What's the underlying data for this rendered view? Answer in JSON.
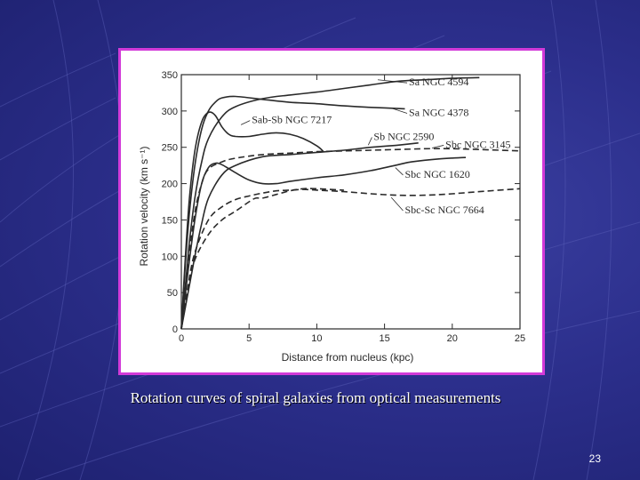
{
  "slide": {
    "caption": "Rotation curves of spiral galaxies from optical measurements",
    "page_number": "23"
  },
  "colors": {
    "background": "#2c2f8c",
    "frame_border": "#d23ad8",
    "ink": "#2a2a2a"
  },
  "chart_data": {
    "type": "line",
    "title": "",
    "xlabel": "Distance from nucleus (kpc)",
    "ylabel": "Rotation velocity (km s⁻¹)",
    "xlim": [
      0,
      25
    ],
    "ylim": [
      0,
      350
    ],
    "xticks": [
      0,
      5,
      10,
      15,
      20,
      25
    ],
    "yticks": [
      0,
      50,
      100,
      150,
      200,
      250,
      300,
      350
    ],
    "xtick_labels": [
      "0",
      "5",
      "10",
      "15",
      "20",
      "25"
    ],
    "ytick_labels": [
      "0",
      "50",
      "100",
      "150",
      "200",
      "250",
      "300",
      "350"
    ],
    "grid": false,
    "series": [
      {
        "name": "Sa NGC 4594",
        "dashed": false,
        "x": [
          0,
          0.3,
          0.6,
          1,
          1.5,
          2,
          2.5,
          3,
          4,
          6,
          8,
          10,
          12,
          14,
          16.5
        ],
        "y": [
          0,
          90,
          160,
          225,
          275,
          300,
          312,
          318,
          320,
          316,
          312,
          310,
          307,
          305,
          303
        ]
      },
      {
        "name": "Sa NGC 4378",
        "dashed": false,
        "x": [
          0,
          0.3,
          0.6,
          1,
          1.5,
          2,
          3,
          4,
          6,
          8,
          10,
          12,
          14,
          16,
          18,
          20,
          22
        ],
        "y": [
          0,
          60,
          120,
          180,
          230,
          262,
          292,
          306,
          317,
          322,
          326,
          331,
          336,
          341,
          343,
          345,
          346
        ]
      },
      {
        "name": "Sab-Sb NGC 7217",
        "dashed": false,
        "x": [
          0,
          0.3,
          0.6,
          1,
          1.5,
          2,
          2.5,
          3,
          3.5,
          4,
          5,
          6,
          7,
          8,
          9,
          10,
          10.5
        ],
        "y": [
          0,
          100,
          180,
          245,
          285,
          298,
          294,
          278,
          268,
          265,
          265,
          268,
          270,
          268,
          262,
          252,
          244
        ]
      },
      {
        "name": "Sb NGC 2590",
        "dashed": false,
        "x": [
          0,
          0.5,
          1,
          1.5,
          2,
          3,
          4,
          6,
          8,
          10,
          12,
          14,
          16,
          17.5
        ],
        "y": [
          0,
          50,
          100,
          145,
          180,
          212,
          225,
          237,
          240,
          243,
          246,
          250,
          253,
          256
        ]
      },
      {
        "name": "Sbc NGC 3145",
        "dashed": true,
        "x": [
          0,
          0.5,
          1,
          1.5,
          2,
          3,
          4,
          6,
          8,
          10,
          12,
          14,
          16,
          18,
          20,
          22,
          25
        ],
        "y": [
          0,
          90,
          160,
          200,
          220,
          230,
          235,
          240,
          242,
          244,
          245,
          246,
          247,
          248,
          248,
          247,
          245
        ]
      },
      {
        "name": "Sbc NGC 1620",
        "dashed": false,
        "x": [
          0,
          0.5,
          1,
          1.5,
          2,
          2.5,
          3,
          4,
          5,
          6,
          7,
          8,
          10,
          12,
          14,
          16,
          17,
          19,
          21
        ],
        "y": [
          0,
          80,
          150,
          200,
          222,
          228,
          226,
          215,
          205,
          200,
          200,
          203,
          208,
          212,
          218,
          226,
          230,
          234,
          236
        ]
      },
      {
        "name": "Sbc-Sc NGC 7664",
        "dashed": true,
        "x": [
          0,
          0.5,
          1,
          2,
          3,
          4,
          5,
          6,
          7,
          8,
          9,
          10,
          12,
          14,
          16,
          18,
          20,
          22,
          25
        ],
        "y": [
          0,
          60,
          105,
          150,
          168,
          178,
          183,
          187,
          190,
          191,
          192,
          191,
          189,
          186,
          184,
          184,
          186,
          189,
          193
        ]
      },
      {
        "name": "",
        "dashed": true,
        "x": [
          0,
          0.5,
          1,
          2,
          3,
          4,
          5,
          5.5,
          6,
          7,
          8,
          9,
          10,
          12
        ],
        "y": [
          0,
          55,
          95,
          130,
          150,
          162,
          175,
          180,
          180,
          185,
          190,
          193,
          193,
          191
        ]
      }
    ],
    "annotations": [
      {
        "text": "Sa NGC 4594",
        "x": 16.8,
        "y": 340,
        "arrow_x": 14.5,
        "arrow_y": 343
      },
      {
        "text": "Sa NGC 4378",
        "x": 16.8,
        "y": 298,
        "arrow_x": 15.5,
        "arrow_y": 304
      },
      {
        "text": "Sab-Sb NGC 7217",
        "x": 5.2,
        "y": 288,
        "arrow_x": 4.4,
        "arrow_y": 281
      },
      {
        "text": "Sb NGC 2590",
        "x": 14.2,
        "y": 265,
        "arrow_x": 13.8,
        "arrow_y": 253
      },
      {
        "text": "Sbc NGC 3145",
        "x": 19.5,
        "y": 254,
        "arrow_x": 18.5,
        "arrow_y": 249
      },
      {
        "text": "Sbc NGC 1620",
        "x": 16.5,
        "y": 213,
        "arrow_x": 15.8,
        "arrow_y": 222
      },
      {
        "text": "Sbc-Sc NGC 7664",
        "x": 16.5,
        "y": 164,
        "arrow_x": 15.5,
        "arrow_y": 181
      }
    ]
  }
}
